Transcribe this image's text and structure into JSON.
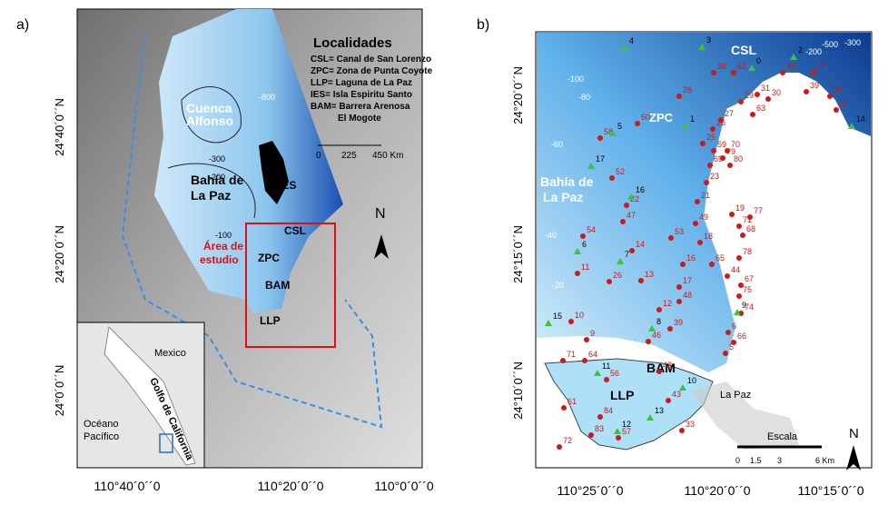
{
  "panel_a": {
    "label": "a)",
    "legend_title": "Localidades",
    "legend_items": [
      "CSL= Canal de San Lorenzo",
      "ZPC= Zona de Punta Coyote",
      "LLP= Laguna de La Paz",
      "IES= Isla Espiritu Santo",
      "BAM= Barrera Arenosa",
      "El Mogote"
    ],
    "places": [
      [
        "Cuenca",
        "Alfonso"
      ],
      [
        "Bahía de",
        "La Paz"
      ],
      [
        "IES"
      ],
      [
        "CSL"
      ],
      [
        "ZPC"
      ],
      [
        "BAM"
      ],
      [
        "LLP"
      ],
      [
        "Área de",
        "estudio"
      ]
    ],
    "contours": [
      "-800",
      "-300",
      "-200",
      "-100"
    ],
    "scale": [
      "0",
      "225",
      "450 Km"
    ],
    "north": "N",
    "lat_labels": [
      "24°40´0´´N",
      "24°20´0´´N",
      "24°0´0´´N"
    ],
    "lon_labels": [
      "110°40´0´´0",
      "110°20´0´´0",
      "110°0´0´´0"
    ],
    "inset": [
      "Mexico",
      "Golfo de California",
      "Océano",
      "Pacífico"
    ]
  },
  "panel_b": {
    "label": "b)",
    "places": [
      "CSL",
      "ZPC",
      [
        "Bahía de",
        "La Paz"
      ],
      "BAM",
      "LLP",
      "La Paz"
    ],
    "depths": [
      "-100",
      "-80",
      "-60",
      "-40",
      "-20",
      "-500",
      "-300",
      "-200"
    ],
    "scale_title": "Escala",
    "scale": [
      "0",
      "1.5",
      "3",
      "6 Km"
    ],
    "north": "N",
    "lat_labels": [
      "24°20´0´´N",
      "24°15´0´´N",
      "24°10´0´´N"
    ],
    "lon_labels": [
      "110°25´0´´0",
      "110°20´0´´0",
      "110°15´0´´0"
    ],
    "red_stations": [
      "36",
      "62",
      "32",
      "37",
      "31",
      "30",
      "29",
      "39",
      "35",
      "34",
      "28",
      "63",
      "27",
      "26",
      "60",
      "58",
      "25",
      "59",
      "70",
      "79",
      "80",
      "52",
      "23",
      "22",
      "21",
      "69",
      "49",
      "47",
      "19",
      "77",
      "71",
      "68",
      "53",
      "18",
      "54",
      "14",
      "78",
      "11",
      "26",
      "13",
      "16",
      "65",
      "44",
      "67",
      "17",
      "75",
      "12",
      "48",
      "74",
      "10",
      "39",
      "6",
      "9",
      "46",
      "66",
      "5",
      "71",
      "64",
      "48",
      "56",
      "61",
      "43",
      "84",
      "72",
      "83",
      "57",
      "33"
    ],
    "green_stations": [
      "4",
      "3",
      "2",
      "0",
      "5",
      "1",
      "17",
      "16",
      "14",
      "6",
      "7",
      "15",
      "8",
      "11",
      "9",
      "10",
      "12",
      "13"
    ]
  }
}
